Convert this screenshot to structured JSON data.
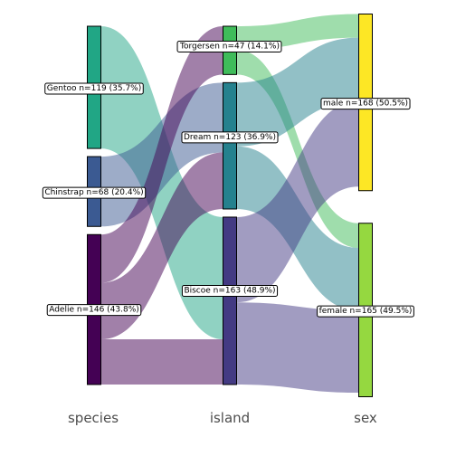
{
  "chart_data": {
    "type": "sankey",
    "axes": [
      "species",
      "island",
      "sex"
    ],
    "nodes": {
      "species": [
        {
          "name": "Gentoo",
          "n": 119,
          "pct": "35.7%",
          "color": "#21a685",
          "label": "Gentoo n=119 (35.7%)"
        },
        {
          "name": "Chinstrap",
          "n": 68,
          "pct": "20.4%",
          "color": "#3b5a92",
          "label": "Chinstrap n=68 (20.4%)"
        },
        {
          "name": "Adelie",
          "n": 146,
          "pct": "43.8%",
          "color": "#440154",
          "label": "Adelie n=146 (43.8%)"
        }
      ],
      "island": [
        {
          "name": "Torgersen",
          "n": 47,
          "pct": "14.1%",
          "color": "#3fbc5a",
          "label": "Torgersen n=47 (14.1%)"
        },
        {
          "name": "Dream",
          "n": 123,
          "pct": "36.9%",
          "color": "#25818e",
          "label": "Dream n=123 (36.9%)"
        },
        {
          "name": "Biscoe",
          "n": 163,
          "pct": "48.9%",
          "color": "#433a83",
          "label": "Biscoe n=163 (48.9%)"
        }
      ],
      "sex": [
        {
          "name": "male",
          "n": 168,
          "pct": "50.5%",
          "color": "#fde725",
          "label": "male n=168 (50.5%)"
        },
        {
          "name": "female",
          "n": 165,
          "pct": "49.5%",
          "color": "#95d840",
          "label": "female n=165 (49.5%)"
        }
      ]
    },
    "flows_species_island": [
      {
        "source": "Gentoo",
        "target": "Biscoe",
        "value": 119
      },
      {
        "source": "Chinstrap",
        "target": "Dream",
        "value": 68
      },
      {
        "source": "Adelie",
        "target": "Torgersen",
        "value": 47
      },
      {
        "source": "Adelie",
        "target": "Dream",
        "value": 55
      },
      {
        "source": "Adelie",
        "target": "Biscoe",
        "value": 44
      }
    ],
    "flows_island_sex": [
      {
        "source": "Torgersen",
        "target": "male",
        "value": 23
      },
      {
        "source": "Torgersen",
        "target": "female",
        "value": 24
      },
      {
        "source": "Dream",
        "target": "male",
        "value": 62
      },
      {
        "source": "Dream",
        "target": "female",
        "value": 61
      },
      {
        "source": "Biscoe",
        "target": "male",
        "value": 83
      },
      {
        "source": "Biscoe",
        "target": "female",
        "value": 80
      }
    ],
    "flow_opacity": 0.5
  }
}
